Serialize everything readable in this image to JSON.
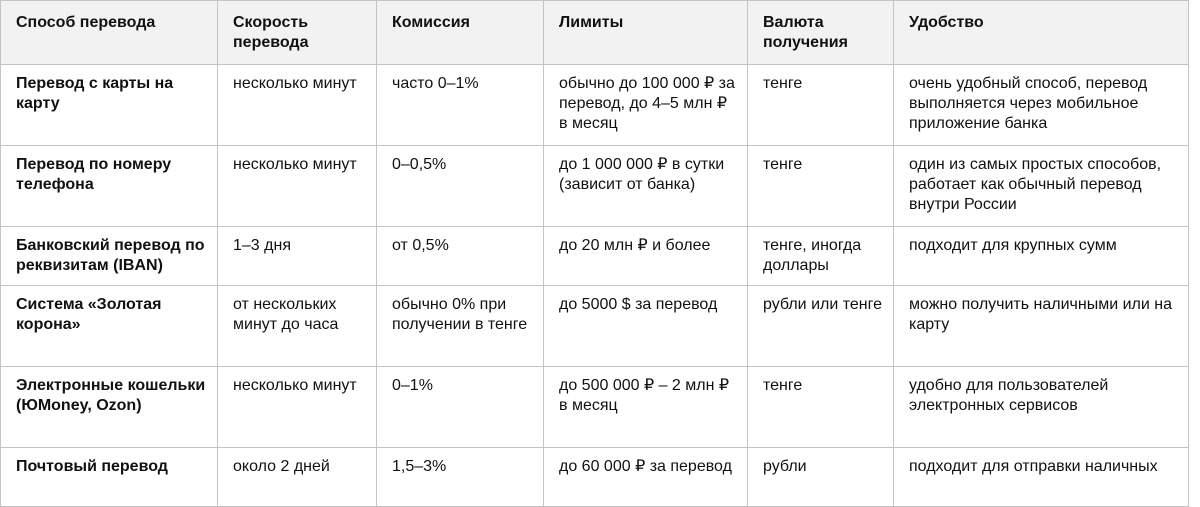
{
  "table": {
    "headers": [
      "Способ перевода",
      "Скорость перевода",
      "Комиссия",
      "Лимиты",
      "Валюта получения",
      "Удобство"
    ],
    "rows": [
      [
        "Перевод с карты на карту",
        "несколько минут",
        "часто 0–1%",
        "обычно до 100 000 ₽ за перевод, до 4–5 млн ₽ в месяц",
        "тенге",
        "очень удобный способ, перевод выполняется через мобильное приложение банка"
      ],
      [
        "Перевод по номеру телефона",
        "несколько минут",
        "0–0,5%",
        "до 1 000 000 ₽ в сутки (зависит от банка)",
        "тенге",
        "один из самых простых способов, работает как обычный перевод внутри России"
      ],
      [
        "Банковский перевод по реквизитам (IBAN)",
        "1–3 дня",
        "от 0,5%",
        "до 20 млн ₽ и более",
        "тенге, иногда доллары",
        "подходит для крупных сумм"
      ],
      [
        "Система «Золотая корона»",
        "от нескольких минут до часа",
        "обычно 0% при получении в тенге",
        "до 5000 $ за перевод",
        "рубли или тенге",
        "можно получить наличными или на карту"
      ],
      [
        "Электронные кошельки (ЮMoney, Ozon)",
        "несколько минут",
        "0–1%",
        "до 500 000 ₽ – 2 млн ₽ в месяц",
        "тенге",
        "удобно для пользователей электронных сервисов"
      ],
      [
        "Почтовый перевод",
        "около 2 дней",
        "1,5–3%",
        "до 60 000 ₽ за перевод",
        "рубли",
        "подходит для отправки наличных"
      ]
    ]
  }
}
